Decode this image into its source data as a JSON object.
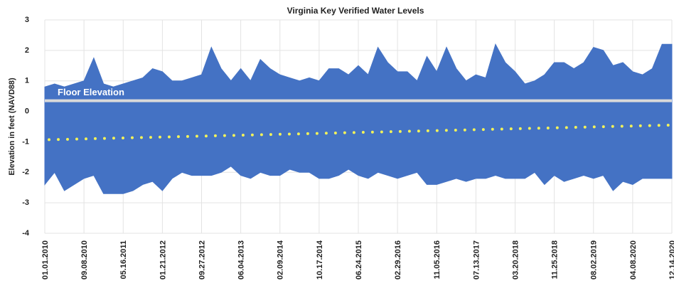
{
  "chart_data": {
    "type": "area",
    "title": "Virginia Key Verified Water Levels",
    "y_label": "Elevation in feet (NAVD88)",
    "categories": [
      "01.01.2010",
      null,
      null,
      null,
      "09.08.2010",
      null,
      null,
      null,
      "05.16.2011",
      null,
      null,
      null,
      "01.21.2012",
      null,
      null,
      null,
      "09.27.2012",
      null,
      null,
      null,
      "06.04.2013",
      null,
      null,
      null,
      "02.09.2014",
      null,
      null,
      null,
      "10.17.2014",
      null,
      null,
      null,
      "06.24.2015",
      null,
      null,
      null,
      "02.29.2016",
      null,
      null,
      null,
      "11.05.2016",
      null,
      null,
      null,
      "07.13.2017",
      null,
      null,
      null,
      "03.20.2018",
      null,
      null,
      null,
      "11.25.2018",
      null,
      null,
      null,
      "08.02.2019",
      null,
      null,
      null,
      "04.08.2020",
      null,
      null,
      null,
      "12.14.2020"
    ],
    "series": [
      {
        "color": "#4472c4",
        "values": [
          0.8,
          0.9,
          0.8,
          0.9,
          1.0,
          1.75,
          0.9,
          0.8,
          0.9,
          1.0,
          1.1,
          1.4,
          1.3,
          1.0,
          1.0,
          1.1,
          1.2,
          2.1,
          1.4,
          1.0,
          1.4,
          1.0,
          1.7,
          1.4,
          1.2,
          1.1,
          1.0,
          1.1,
          1.0,
          1.4,
          1.4,
          1.2,
          1.5,
          1.2,
          2.1,
          1.6,
          1.3,
          1.3,
          1.0,
          1.8,
          1.3,
          2.1,
          1.4,
          1.0,
          1.2,
          1.1,
          2.2,
          1.6,
          1.3,
          0.9,
          1.0,
          1.2,
          1.6,
          1.6,
          1.4,
          1.6,
          2.1,
          2.0,
          1.5,
          1.6,
          1.3,
          1.2,
          1.4,
          2.2,
          2.2
        ]
      },
      {
        "color": "#4472c4",
        "values": [
          -2.4,
          -2.0,
          -2.6,
          -2.4,
          -2.2,
          -2.1,
          -2.7,
          -2.7,
          -2.7,
          -2.6,
          -2.4,
          -2.3,
          -2.6,
          -2.2,
          -2.0,
          -2.1,
          -2.1,
          -2.1,
          -2.0,
          -1.8,
          -2.1,
          -2.2,
          -2.0,
          -2.1,
          -2.1,
          -1.9,
          -2.0,
          -2.0,
          -2.2,
          -2.2,
          -2.1,
          -1.9,
          -2.1,
          -2.2,
          -2.0,
          -2.1,
          -2.2,
          -2.1,
          -2.0,
          -2.4,
          -2.4,
          -2.3,
          -2.2,
          -2.3,
          -2.2,
          -2.2,
          -2.1,
          -2.2,
          -2.2,
          -2.2,
          -2.0,
          -2.4,
          -2.1,
          -2.3,
          -2.2,
          -2.1,
          -2.2,
          -2.1,
          -2.6,
          -2.3,
          -2.4,
          -2.2,
          -2.2,
          -2.2,
          -2.2
        ]
      }
    ],
    "reference_line": {
      "label": "Floor Elevation",
      "value": 0.35,
      "color": "#d9d9d9"
    },
    "trend": {
      "values": [
        -0.93,
        -0.45
      ],
      "color": "#f2f25a"
    },
    "ylim": [
      -4,
      3
    ],
    "yticks": [
      3,
      2,
      1,
      0,
      -1,
      -2,
      -3,
      -4
    ],
    "grid": true
  }
}
